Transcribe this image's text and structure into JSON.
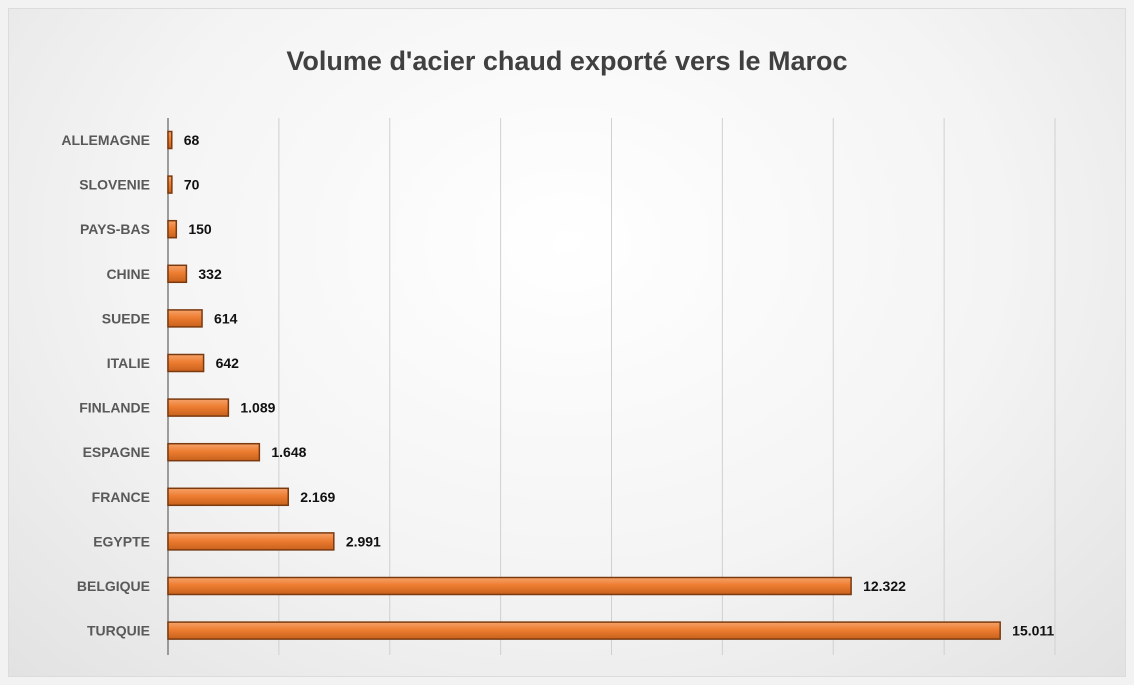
{
  "chart_data": {
    "type": "bar",
    "orientation": "horizontal",
    "title": "Volume d'acier chaud exporté vers le Maroc",
    "xlabel": "",
    "ylabel": "",
    "categories": [
      "ALLEMAGNE",
      "SLOVENIE",
      "PAYS-BAS",
      "CHINE",
      "SUEDE",
      "ITALIE",
      "FINLANDE",
      "ESPAGNE",
      "FRANCE",
      "EGYPTE",
      "BELGIQUE",
      "TURQUIE"
    ],
    "values": [
      68,
      70,
      150,
      332,
      614,
      642,
      1089,
      1648,
      2169,
      2991,
      12322,
      15011
    ],
    "value_labels": [
      "68",
      "70",
      "150",
      "332",
      "614",
      "642",
      "1.089",
      "1.648",
      "2.169",
      "2.991",
      "12.322",
      "15.011"
    ],
    "xlim": [
      0,
      16000
    ],
    "grid": true,
    "legend": "none",
    "colors": {
      "bar": "#ed7d31",
      "bar_edge": "#7a3a10",
      "grid": "#d0d0d0",
      "axis": "#7f7f7f"
    }
  }
}
